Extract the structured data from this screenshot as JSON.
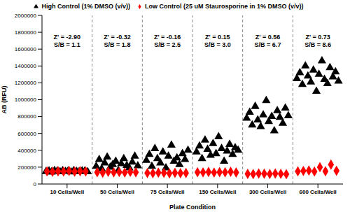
{
  "chart_data": {
    "type": "scatter",
    "x_label": "Plate Condition",
    "y_label": "AB (RFU)",
    "xlim": [
      0,
      6
    ],
    "xticks": [
      {
        "value": 0.5,
        "label": "10 Cells/Well"
      },
      {
        "value": 1.5,
        "label": "50 Cells/Well"
      },
      {
        "value": 2.5,
        "label": "75 Cells/Well"
      },
      {
        "value": 3.5,
        "label": "150 Cells/Well"
      },
      {
        "value": 4.5,
        "label": "300 Cells/Well"
      },
      {
        "value": 5.5,
        "label": "600 Cells/Well"
      }
    ],
    "ylim": [
      0,
      2000000
    ],
    "yticks": [
      0,
      200000,
      400000,
      600000,
      800000,
      1000000,
      1200000,
      1400000,
      1600000,
      1800000,
      2000000
    ],
    "grid": false,
    "legend": "top",
    "annotations": [
      [
        "Z' = -2.90",
        "S/B = 1.1"
      ],
      [
        "Z' = -0.32",
        "S/B = 1.8"
      ],
      [
        "Z' = -0.16",
        "S/B = 2.5"
      ],
      [
        "Z' = 0.15",
        "S/B = 3.0"
      ],
      [
        "Z' = 0.56",
        "S/B = 6.7"
      ],
      [
        "Z' = 0.73",
        "S/B = 8.6"
      ]
    ],
    "series": [
      {
        "name": "High Control (1% DMSO (v/v))",
        "color": "#000000",
        "marker": "triangle",
        "x": [
          0.08,
          0.14,
          0.19,
          0.25,
          0.3,
          0.36,
          0.41,
          0.47,
          0.52,
          0.58,
          0.63,
          0.69,
          0.74,
          0.8,
          0.85,
          0.91,
          1.08,
          1.14,
          1.19,
          1.25,
          1.3,
          1.36,
          1.41,
          1.47,
          1.52,
          1.58,
          1.63,
          1.69,
          1.74,
          1.8,
          1.85,
          1.91,
          2.08,
          2.14,
          2.19,
          2.25,
          2.3,
          2.36,
          2.41,
          2.47,
          2.52,
          2.58,
          2.63,
          2.69,
          2.74,
          2.8,
          2.85,
          2.91,
          3.08,
          3.14,
          3.19,
          3.25,
          3.3,
          3.36,
          3.41,
          3.47,
          3.52,
          3.58,
          3.63,
          3.69,
          3.74,
          3.8,
          3.85,
          3.91,
          4.08,
          4.14,
          4.19,
          4.25,
          4.3,
          4.36,
          4.41,
          4.47,
          4.52,
          4.58,
          4.63,
          4.69,
          4.74,
          4.8,
          4.85,
          4.91,
          5.08,
          5.14,
          5.19,
          5.25,
          5.3,
          5.36,
          5.41,
          5.47,
          5.52,
          5.58,
          5.63,
          5.69,
          5.74,
          5.8,
          5.85,
          5.91
        ],
        "values": [
          148000,
          155000,
          142000,
          160000,
          151000,
          146000,
          157000,
          149000,
          153000,
          144000,
          158000,
          150000,
          147000,
          156000,
          152000,
          145000,
          210000,
          290000,
          180000,
          250000,
          320000,
          200000,
          230000,
          270000,
          160000,
          240000,
          300000,
          220000,
          190000,
          260000,
          330000,
          215000,
          280000,
          350000,
          210000,
          420000,
          300000,
          250000,
          380000,
          190000,
          330000,
          460000,
          270000,
          310000,
          230000,
          360000,
          290000,
          400000,
          380000,
          450000,
          300000,
          520000,
          410000,
          340000,
          480000,
          360000,
          560000,
          420000,
          270000,
          390000,
          470000,
          350000,
          430000,
          400000,
          780000,
          850000,
          700000,
          920000,
          760000,
          680000,
          820000,
          990000,
          740000,
          800000,
          630000,
          870000,
          790000,
          720000,
          900000,
          810000,
          1250000,
          1320000,
          1180000,
          1400000,
          1280000,
          1210000,
          1350000,
          1100000,
          1300000,
          1460000,
          1240000,
          1190000,
          1380000,
          1270000,
          1330000,
          1220000
        ]
      },
      {
        "name": "Low Control (25 uM Staurosporine in 1% DMSO (v/v))",
        "color": "#ff0000",
        "marker": "diamond",
        "x": [
          0.1,
          0.21,
          0.32,
          0.43,
          0.54,
          0.65,
          0.76,
          0.87,
          1.1,
          1.21,
          1.32,
          1.43,
          1.54,
          1.65,
          1.76,
          1.87,
          2.1,
          2.21,
          2.32,
          2.43,
          2.54,
          2.65,
          2.76,
          2.87,
          3.1,
          3.21,
          3.32,
          3.43,
          3.54,
          3.65,
          3.76,
          3.87,
          4.1,
          4.21,
          4.32,
          4.43,
          4.54,
          4.65,
          4.76,
          4.87,
          5.1,
          5.21,
          5.32,
          5.43,
          5.54,
          5.65,
          5.76,
          5.87
        ],
        "values": [
          150000,
          145000,
          152000,
          148000,
          155000,
          147000,
          151000,
          149000,
          140000,
          135000,
          145000,
          138000,
          142000,
          136000,
          144000,
          139000,
          130000,
          128000,
          135000,
          132000,
          127000,
          133000,
          129000,
          131000,
          140000,
          138000,
          143000,
          136000,
          141000,
          139000,
          145000,
          137000,
          120000,
          118000,
          125000,
          122000,
          119000,
          124000,
          121000,
          117000,
          150000,
          155000,
          160000,
          148000,
          200000,
          152000,
          230000,
          157000
        ]
      }
    ]
  }
}
